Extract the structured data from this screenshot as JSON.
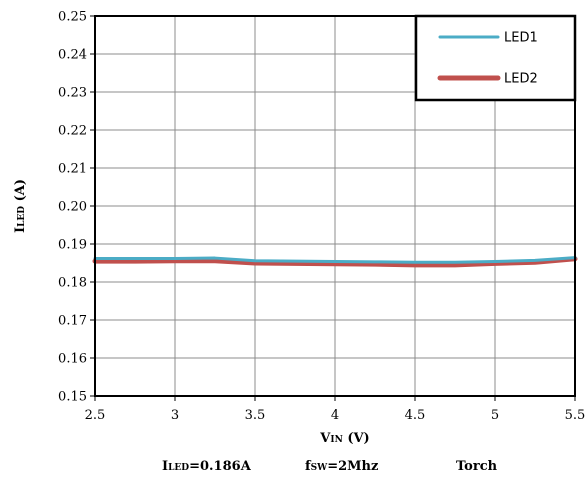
{
  "chart_data": {
    "type": "line",
    "x": [
      2.5,
      2.75,
      3.0,
      3.25,
      3.5,
      3.75,
      4.0,
      4.25,
      4.5,
      4.75,
      5.0,
      5.25,
      5.5
    ],
    "series": [
      {
        "name": "LED1",
        "color": "#4BACC6",
        "values": [
          0.1862,
          0.1862,
          0.1862,
          0.1863,
          0.1856,
          0.1855,
          0.1854,
          0.1853,
          0.1852,
          0.1852,
          0.1854,
          0.1857,
          0.1864
        ]
      },
      {
        "name": "LED2",
        "color": "#C0504D",
        "values": [
          0.1855,
          0.1855,
          0.1856,
          0.1856,
          0.185,
          0.1849,
          0.1848,
          0.1847,
          0.1845,
          0.1845,
          0.1849,
          0.1852,
          0.1861
        ]
      }
    ],
    "xlim": [
      2.5,
      5.5
    ],
    "ylim": [
      0.15,
      0.25
    ],
    "x_ticks": [
      "2.5",
      "3",
      "3.5",
      "4",
      "4.5",
      "5",
      "5.5"
    ],
    "y_ticks": [
      "0.15",
      "0.16",
      "0.17",
      "0.18",
      "0.19",
      "0.20",
      "0.21",
      "0.22",
      "0.23",
      "0.24",
      "0.25"
    ],
    "xlabel": {
      "main": "V",
      "sub": "IN",
      "unit": " (V)"
    },
    "ylabel": {
      "main": "I",
      "sub": "LED",
      "unit": " (A)"
    },
    "grid": true,
    "legend_position": "top-right",
    "footer": {
      "left": {
        "main": "I",
        "sub": "LED",
        "rest": "=0.186A"
      },
      "middle": {
        "main": "f",
        "sub": "SW",
        "rest": "=2Mhz"
      },
      "right": "Torch"
    }
  }
}
